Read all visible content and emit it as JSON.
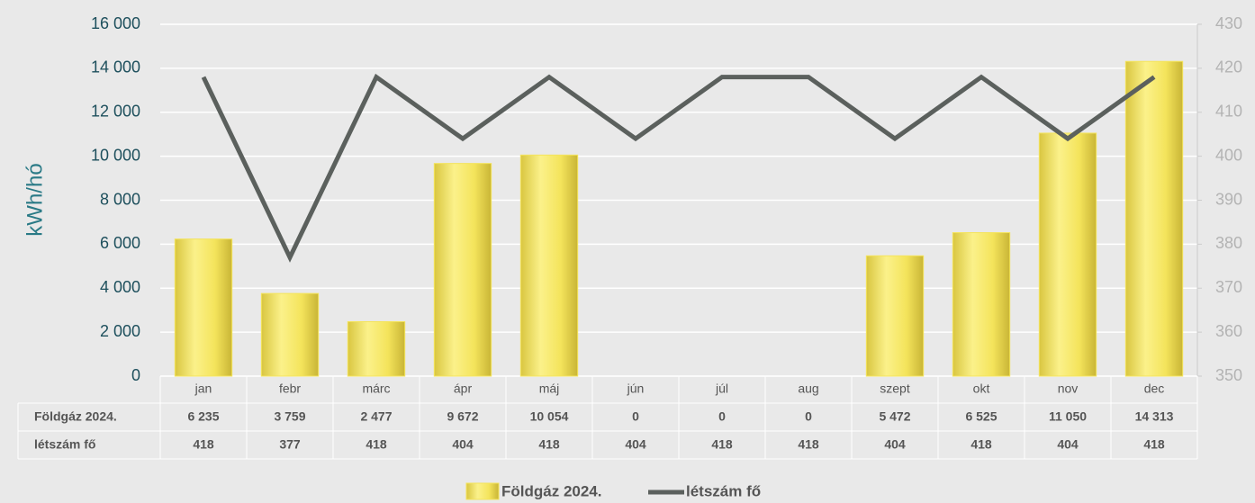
{
  "chart_data": {
    "type": "bar-line",
    "y_label": "kWh/hó",
    "categories": [
      "jan",
      "febr",
      "márc",
      "ápr",
      "máj",
      "jún",
      "júl",
      "aug",
      "szept",
      "okt",
      "nov",
      "dec"
    ],
    "series": [
      {
        "name": "Földgáz 2024.",
        "type": "bar",
        "color": "#f4e45c",
        "values": [
          6235,
          3759,
          2477,
          9672,
          10054,
          0,
          0,
          0,
          5472,
          6525,
          11050,
          14313
        ],
        "value_labels": [
          "6 235",
          "3 759",
          "2 477",
          "9 672",
          "10 054",
          "0",
          "0",
          "0",
          "5 472",
          "6 525",
          "11 050",
          "14 313"
        ]
      },
      {
        "name": "létszám fő",
        "type": "line",
        "axis": "y2",
        "color": "#5b605d",
        "values": [
          418,
          377,
          418,
          404,
          418,
          404,
          418,
          418,
          404,
          418,
          404,
          418
        ]
      }
    ],
    "ylim": [
      0,
      16000
    ],
    "yticks": [
      0,
      {
        "value": 2000,
        "label": "2 000"
      },
      {
        "value": 4000,
        "label": "4 000"
      },
      {
        "value": 6000,
        "label": "6 000"
      },
      {
        "value": 8000,
        "label": "8 000"
      },
      {
        "value": 10000,
        "label": "10 000"
      },
      {
        "value": 12000,
        "label": "12 000"
      },
      {
        "value": 14000,
        "label": "14 000"
      },
      {
        "value": 16000,
        "label": "16 000"
      }
    ],
    "y2lim": [
      350,
      430
    ],
    "y2ticks": [
      350,
      360,
      370,
      380,
      390,
      400,
      410,
      420,
      430
    ],
    "grid": true,
    "data_table": true,
    "legend": "bottom"
  }
}
